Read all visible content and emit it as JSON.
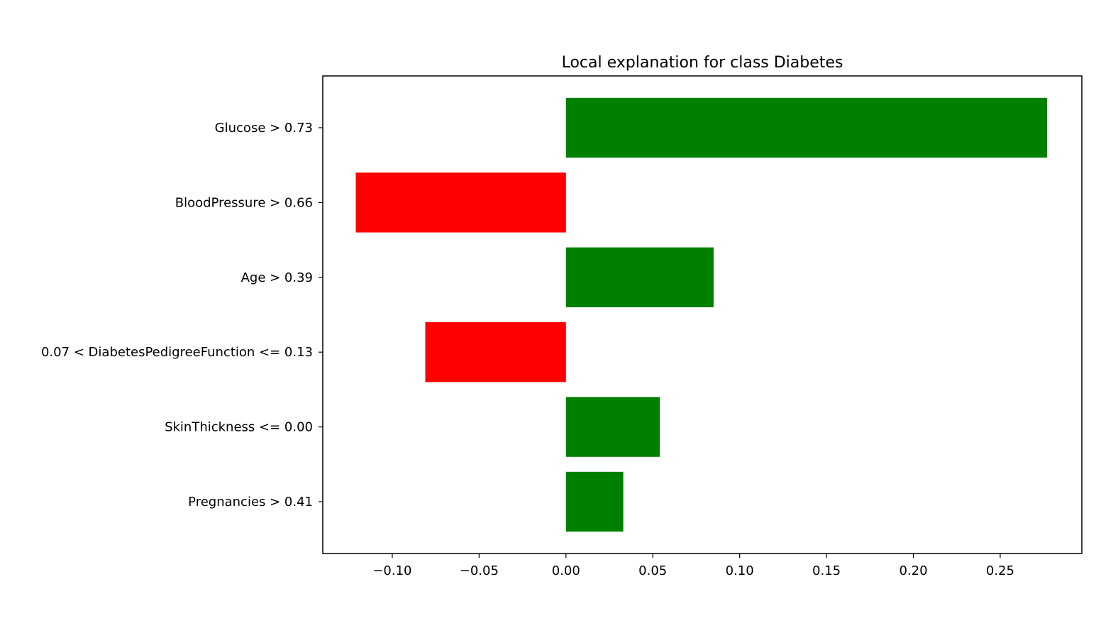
{
  "chart_data": {
    "type": "bar",
    "orientation": "horizontal",
    "title": "Local explanation for class Diabetes",
    "xlabel": "",
    "ylabel": "",
    "categories": [
      "Glucose > 0.73",
      "BloodPressure > 0.66",
      "Age > 0.39",
      "0.07 < DiabetesPedigreeFunction <= 0.13",
      "SkinThickness <= 0.00",
      "Pregnancies > 0.41"
    ],
    "values": [
      0.277,
      -0.121,
      0.085,
      -0.081,
      0.054,
      0.033
    ],
    "xlim": [
      -0.14,
      0.297
    ],
    "xticks": [
      -0.1,
      -0.05,
      0.0,
      0.05,
      0.1,
      0.15,
      0.2,
      0.25
    ],
    "xtick_labels": [
      "−0.10",
      "−0.05",
      "0.00",
      "0.05",
      "0.10",
      "0.15",
      "0.20",
      "0.25"
    ],
    "grid": false,
    "legend": "none",
    "colors": {
      "positive": "#008000",
      "negative": "#ff0000",
      "axes": "#000000"
    }
  }
}
